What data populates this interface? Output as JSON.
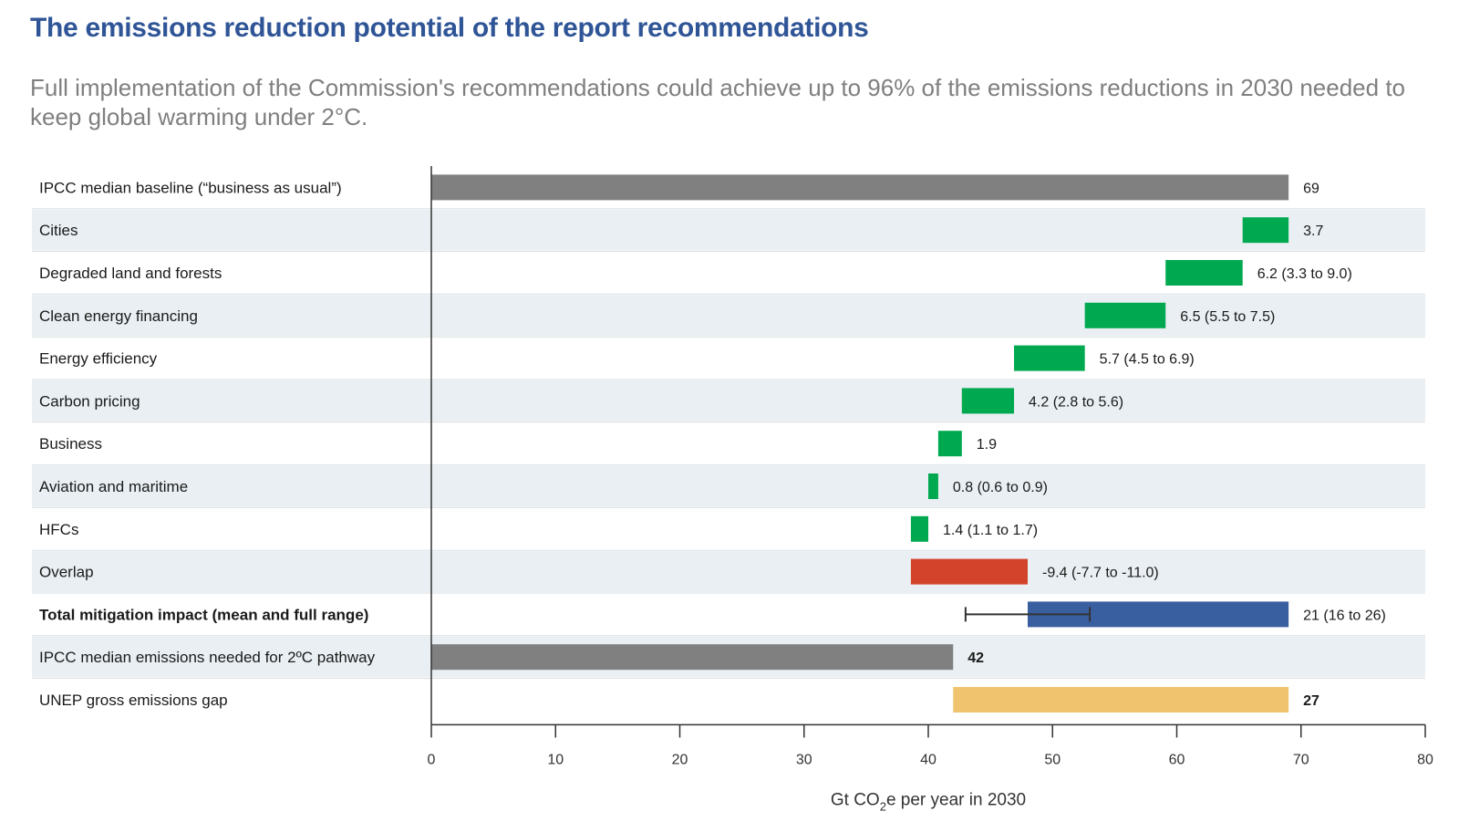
{
  "header": {
    "title": "The emissions reduction potential of the report recommendations",
    "subtitle": "Full implementation of the Commission's recommendations could achieve up to 96% of the emissions reductions in 2030 needed to keep global warming under 2°C."
  },
  "chart_data": {
    "type": "bar",
    "subtype": "waterfall",
    "title": "The emissions reduction potential of the report recommendations",
    "subtitle": "Full implementation of the Commission's recommendations could achieve up to 96% of the emissions reductions in 2030 needed to keep global warming under 2°C.",
    "xlabel": "Gt CO2e per year in 2030",
    "xlabel_parts": [
      "Gt CO",
      "2",
      "e per year in 2030"
    ],
    "xlim": [
      0,
      80
    ],
    "xticks": [
      0,
      10,
      20,
      30,
      40,
      50,
      60,
      70,
      80
    ],
    "grid": false,
    "legend": "none",
    "colors": {
      "baseline": "#808080",
      "reduction": "#00a94f",
      "overlap": "#d3432b",
      "total": "#3a5fa0",
      "gap": "#f0c36e",
      "row_band": "#e9eff3"
    },
    "rows": [
      {
        "label": "IPCC median baseline (“business as usual”)",
        "start": 0,
        "end": 69,
        "value_label": "69",
        "color": "#808080",
        "bold_label": false,
        "bold_value": false
      },
      {
        "label": "Cities",
        "start": 65.3,
        "end": 69,
        "value_label": "3.7",
        "color": "#00a94f",
        "bold_label": false,
        "bold_value": false
      },
      {
        "label": "Degraded land and forests",
        "start": 59.1,
        "end": 65.3,
        "value_label": "6.2  (3.3 to 9.0)",
        "color": "#00a94f",
        "bold_label": false,
        "bold_value": false
      },
      {
        "label": "Clean energy financing",
        "start": 52.6,
        "end": 59.1,
        "value_label": "6.5  (5.5 to 7.5)",
        "color": "#00a94f",
        "bold_label": false,
        "bold_value": false
      },
      {
        "label": "Energy efficiency",
        "start": 46.9,
        "end": 52.6,
        "value_label": "5.7  (4.5 to 6.9)",
        "color": "#00a94f",
        "bold_label": false,
        "bold_value": false
      },
      {
        "label": "Carbon pricing",
        "start": 42.7,
        "end": 46.9,
        "value_label": "4.2  (2.8 to 5.6)",
        "color": "#00a94f",
        "bold_label": false,
        "bold_value": false
      },
      {
        "label": "Business",
        "start": 40.8,
        "end": 42.7,
        "value_label": "1.9",
        "color": "#00a94f",
        "bold_label": false,
        "bold_value": false
      },
      {
        "label": "Aviation and maritime",
        "start": 40.0,
        "end": 40.8,
        "value_label": "0.8  (0.6 to 0.9)",
        "color": "#00a94f",
        "bold_label": false,
        "bold_value": false
      },
      {
        "label": "HFCs",
        "start": 38.6,
        "end": 40.0,
        "value_label": "1.4  (1.1 to 1.7)",
        "color": "#00a94f",
        "bold_label": false,
        "bold_value": false
      },
      {
        "label": "Overlap",
        "start": 38.6,
        "end": 48.0,
        "value_label": "-9.4  (-7.7 to -11.0)",
        "color": "#d3432b",
        "bold_label": false,
        "bold_value": false
      },
      {
        "label": "Total mitigation impact (mean and full range)",
        "start": 48.0,
        "end": 69,
        "value_label": "21  (16 to 26)",
        "color": "#3a5fa0",
        "bold_label": true,
        "bold_value": false,
        "range": [
          43,
          53
        ]
      },
      {
        "label": "IPCC median emissions needed for 2ºC pathway",
        "start": 0,
        "end": 42,
        "value_label": "42",
        "color": "#808080",
        "bold_label": false,
        "bold_value": true
      },
      {
        "label": "UNEP gross emissions gap",
        "start": 42,
        "end": 69,
        "value_label": "27",
        "color": "#f0c36e",
        "bold_label": false,
        "bold_value": true
      }
    ]
  }
}
